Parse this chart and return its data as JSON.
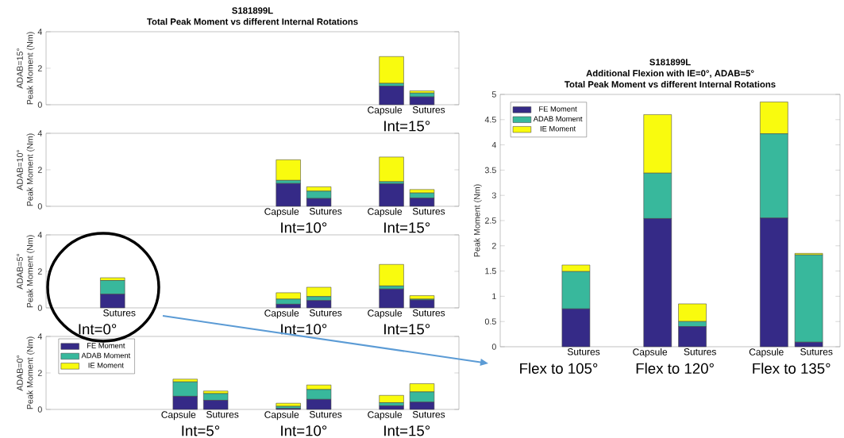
{
  "chart_data": [
    {
      "type": "bar",
      "stacked": true,
      "title": "S181899L\nTotal Peak Moment vs different Internal Rotations",
      "ylabel": "ADAB=15°\nPeak Moment (Nm)",
      "categories": [
        null,
        null,
        null,
        null,
        null,
        null,
        "Capsule",
        "Sutures"
      ],
      "series": [
        {
          "color": "#352a87",
          "values": [
            0,
            0,
            0,
            0,
            0,
            0,
            1.02,
            0.43
          ]
        },
        {
          "color": "#38b89c",
          "values": [
            0,
            0,
            0,
            0,
            0,
            0,
            0.15,
            0.21
          ]
        },
        {
          "color": "#f9fb0e",
          "values": [
            0,
            0,
            0,
            0,
            0,
            0,
            1.47,
            0.12
          ]
        }
      ],
      "ylim": [
        0,
        4
      ],
      "yticks": [
        0,
        2,
        4
      ],
      "annotations": [
        "Int=15°"
      ]
    },
    {
      "type": "bar",
      "stacked": true,
      "ylabel": "ADAB=10°\nPeak Moment (Nm)",
      "categories": [
        null,
        null,
        null,
        null,
        "Capsule",
        "Sutures",
        "Capsule",
        "Sutures"
      ],
      "series": [
        {
          "color": "#352a87",
          "values": [
            0,
            0,
            0,
            0,
            1.25,
            0.43,
            1.23,
            0.45
          ]
        },
        {
          "color": "#38b89c",
          "values": [
            0,
            0,
            0,
            0,
            0.17,
            0.4,
            0.12,
            0.28
          ]
        },
        {
          "color": "#f9fb0e",
          "values": [
            0,
            0,
            0,
            0,
            1.13,
            0.24,
            1.35,
            0.19
          ]
        }
      ],
      "ylim": [
        0,
        4
      ],
      "yticks": [
        0,
        2,
        4
      ],
      "annotations": [
        "Int=10°",
        "Int=15°"
      ]
    },
    {
      "type": "bar",
      "stacked": true,
      "ylabel": "ADAB=5°\nPeak Moment (Nm)",
      "categories": [
        null,
        "Sutures",
        null,
        null,
        "Capsule",
        "Sutures",
        "Capsule",
        "Sutures"
      ],
      "series": [
        {
          "color": "#352a87",
          "values": [
            null,
            0.75,
            null,
            null,
            0.2,
            0.4,
            1.03,
            0.43
          ]
        },
        {
          "color": "#38b89c",
          "values": [
            null,
            0.75,
            null,
            null,
            0.28,
            0.22,
            0.17,
            0.05
          ]
        },
        {
          "color": "#f9fb0e",
          "values": [
            null,
            0.15,
            null,
            null,
            0.35,
            0.51,
            1.18,
            0.19
          ]
        }
      ],
      "ylim": [
        0,
        4
      ],
      "yticks": [
        0,
        2,
        4
      ],
      "annotations": [
        "Int=0°",
        "Int=10°",
        "Int=15°"
      ]
    },
    {
      "type": "bar",
      "stacked": true,
      "ylabel": "ADAB=0°\nPeak Moment (Nm)",
      "legend": "top left",
      "categories": [
        null,
        null,
        "Capsule",
        "Sutures",
        "Capsule",
        "Sutures",
        "Capsule",
        "Sutures"
      ],
      "series": [
        {
          "name": "FE Moment",
          "color": "#352a87",
          "values": [
            0,
            0,
            0.72,
            0.5,
            0.05,
            0.55,
            0.2,
            0.4
          ]
        },
        {
          "name": "ADAB Moment",
          "color": "#38b89c",
          "values": [
            0,
            0,
            0.79,
            0.37,
            0.12,
            0.54,
            0.17,
            0.56
          ]
        },
        {
          "name": "IE Moment",
          "color": "#f9fb0e",
          "values": [
            0,
            0,
            0.15,
            0.14,
            0.17,
            0.25,
            0.4,
            0.45
          ]
        }
      ],
      "ylim": [
        0,
        4
      ],
      "yticks": [
        0,
        2,
        4
      ],
      "annotations": [
        "Int=5°",
        "Int=10°",
        "Int=15°"
      ]
    },
    {
      "type": "bar",
      "stacked": true,
      "title": "S181899L\nAdditional Flexion with IE=0°, ADAB=5°\nTotal Peak Moment vs different Internal Rotations",
      "ylabel": "Peak Moment (Nm)",
      "legend": "top left",
      "categories": [
        null,
        "Sutures",
        "Capsule",
        "Sutures",
        "Capsule",
        "Sutures"
      ],
      "series": [
        {
          "name": "FE Moment",
          "color": "#352a87",
          "values": [
            0,
            0.75,
            2.54,
            0.4,
            2.55,
            0.09
          ]
        },
        {
          "name": "ADAB Moment",
          "color": "#38b89c",
          "values": [
            0,
            0.74,
            0.9,
            0.1,
            1.67,
            1.73
          ]
        },
        {
          "name": "IE Moment",
          "color": "#f9fb0e",
          "values": [
            0,
            0.13,
            1.16,
            0.35,
            0.63,
            0.03
          ]
        }
      ],
      "ylim": [
        0,
        5
      ],
      "yticks": [
        0,
        0.5,
        1,
        1.5,
        2,
        2.5,
        3,
        3.5,
        4,
        4.5,
        5
      ],
      "annotations": [
        "Flex to 105°",
        "Flex to 120°",
        "Flex to 135°"
      ]
    }
  ]
}
